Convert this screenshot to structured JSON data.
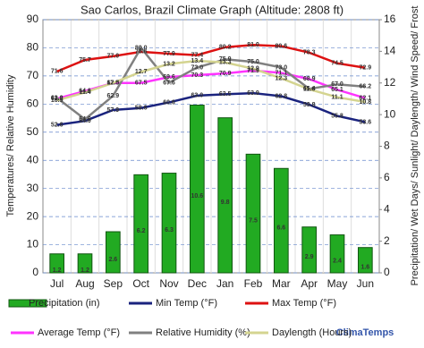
{
  "chart_data": {
    "type": "combo",
    "title": "Sao Carlos, Brazil Climate Graph (Altitude: 2808 ft)",
    "ylabel": "Temperatures/ Relative Humidity",
    "y2label": "Precipitation/ Wet Days/ Sunlight/ Daylength/ Wind Speed/ Frost",
    "brand": "ClimaTemps",
    "categories": [
      "Jul",
      "Aug",
      "Sep",
      "Oct",
      "Nov",
      "Dec",
      "Jan",
      "Feb",
      "Mar",
      "Apr",
      "May",
      "Jun"
    ],
    "ylim": [
      0,
      90
    ],
    "yticks": [
      0,
      10,
      20,
      30,
      40,
      50,
      60,
      70,
      80,
      90
    ],
    "y2lim": [
      0,
      16
    ],
    "y2ticks": [
      0,
      2,
      4,
      6,
      8,
      10,
      12,
      14,
      16
    ],
    "grid": true,
    "legend": "bottom",
    "series": [
      {
        "name": "Precipitation (in)",
        "type": "bar",
        "axis": "y2",
        "color": "#22aa22",
        "values": [
          1.2,
          1.2,
          2.6,
          6.2,
          6.3,
          10.6,
          9.8,
          7.5,
          6.6,
          2.9,
          2.4,
          1.6
        ]
      },
      {
        "name": "Min Temp (°F)",
        "type": "line",
        "color": "#1a237e",
        "values": [
          52.6,
          54.0,
          57.9,
          58.6,
          60.6,
          63.0,
          63.5,
          63.9,
          62.8,
          59.8,
          55.8,
          53.6
        ],
        "value_labels": [
          "52.6",
          "54.0",
          "57.9",
          "58.6",
          "60.6",
          "63.0",
          "63.5",
          "63.9",
          "62.8",
          "59.8",
          "55.8",
          "53.6"
        ]
      },
      {
        "name": "Max Temp (°F)",
        "type": "line",
        "color": "#dd1111",
        "values": [
          71.6,
          75.7,
          77.0,
          78.6,
          77.9,
          77.4,
          80.2,
          81.0,
          80.6,
          78.3,
          74.5,
          72.9
        ],
        "value_labels": [
          "71.6",
          "75.7",
          "77.0",
          "78.6",
          "77.9",
          "77.4",
          "80.2",
          "81.0",
          "80.6",
          "78.3",
          "74.5",
          "72.9"
        ]
      },
      {
        "name": "Average Temp (°F)",
        "type": "line",
        "color": "#ff33ff",
        "values": [
          61.9,
          64.6,
          67.5,
          67.5,
          69.6,
          70.3,
          70.9,
          71.9,
          71.1,
          68.9,
          65.1,
          62.1
        ]
      },
      {
        "name": "Relative Humidity (%)",
        "type": "line",
        "color": "#808080",
        "values": [
          62.2,
          54.6,
          62.9,
          80.0,
          67.6,
          73.0,
          75.9,
          75.0,
          73.0,
          65.4,
          67.0,
          66.2
        ],
        "value_labels": [
          "62.2",
          "54.6",
          "62.9",
          "80.0",
          "67.6",
          "73.0",
          "75.9",
          "75.0",
          "73.0",
          "65.4",
          "67.0",
          "66.2"
        ]
      },
      {
        "name": "Daylength (Hours)",
        "type": "line",
        "axis": "y2",
        "color": "#d4d490",
        "values": [
          10.9,
          11.4,
          12.0,
          12.7,
          13.2,
          13.4,
          13.3,
          12.9,
          12.3,
          11.6,
          11.1,
          10.8
        ],
        "value_labels": [
          "10.9",
          "11.4",
          "12.0",
          "12.7",
          "13.2",
          "13.4",
          "13.3",
          "12.9",
          "12.3",
          "11.6",
          "11.1",
          "10.8"
        ]
      }
    ]
  }
}
